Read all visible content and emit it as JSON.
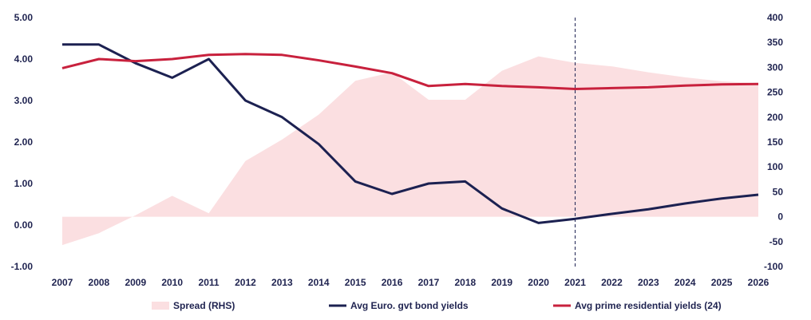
{
  "chart_data": {
    "type": "line",
    "x": [
      "2007",
      "2008",
      "2009",
      "2010",
      "2011",
      "2012",
      "2013",
      "2014",
      "2015",
      "2016",
      "2017",
      "2018",
      "2019",
      "2020",
      "2021",
      "2022",
      "2023",
      "2024",
      "2025",
      "2026"
    ],
    "y_left_ticks": [
      "5.00",
      "4.00",
      "3.00",
      "2.00",
      "1.00",
      "0.00",
      "-1.00"
    ],
    "y_right_ticks": [
      "400",
      "350",
      "300",
      "250",
      "200",
      "150",
      "100",
      "50",
      "0",
      "-50",
      "-100"
    ],
    "ylim_left": [
      -1,
      5
    ],
    "ylim_right": [
      -100,
      400
    ],
    "forecast_marker": "2021",
    "series": [
      {
        "name": "Spread (RHS)",
        "type": "area",
        "axis": "right",
        "color": "#fbdfe1",
        "values": [
          -57,
          -33,
          3,
          42,
          7,
          112,
          155,
          205,
          273,
          290,
          235,
          235,
          293,
          322,
          309,
          302,
          290,
          280,
          272,
          268
        ]
      },
      {
        "name": "Avg Euro. gvt bond yields",
        "type": "line",
        "axis": "left",
        "color": "#1c2151",
        "values": [
          4.35,
          4.35,
          3.9,
          3.55,
          4.0,
          3.0,
          2.6,
          1.95,
          1.05,
          0.75,
          1.0,
          1.05,
          0.4,
          0.05,
          0.15,
          0.27,
          0.38,
          0.52,
          0.64,
          0.73
        ]
      },
      {
        "name": "Avg prime residential yields (24)",
        "type": "line",
        "axis": "left",
        "color": "#c8213d",
        "values": [
          3.78,
          4.0,
          3.95,
          4.0,
          4.1,
          4.12,
          4.1,
          3.97,
          3.82,
          3.66,
          3.35,
          3.4,
          3.35,
          3.32,
          3.28,
          3.3,
          3.32,
          3.36,
          3.39,
          3.4
        ]
      }
    ],
    "legend_position": "bottom"
  }
}
